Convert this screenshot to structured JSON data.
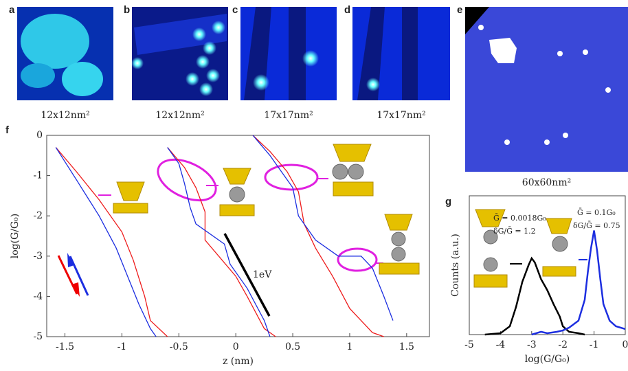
{
  "panels": [
    {
      "letter": "a",
      "caption": "12x12nm²"
    },
    {
      "letter": "b",
      "caption": "12x12nm²"
    },
    {
      "letter": "c",
      "caption": "17x17nm²"
    },
    {
      "letter": "d",
      "caption": "17x17nm²"
    },
    {
      "letter": "e",
      "caption": "60x60nm²"
    }
  ],
  "chart_data": [
    {
      "type": "line",
      "label": "f",
      "xlabel": "z (nm)",
      "ylabel": "log(G/G₀)",
      "annotation": "1eV",
      "xlim": [
        -1.66,
        1.7
      ],
      "ylim": [
        -5,
        0
      ],
      "xticks": [
        -1.5,
        -1,
        -0.5,
        0,
        0.5,
        1,
        1.5
      ],
      "yticks": [
        0,
        -1,
        -2,
        -3,
        -4,
        -5
      ],
      "series": [
        {
          "color": "#ee1c1c",
          "x": [
            -1.58,
            -1.4,
            -1.2,
            -1.0,
            -0.9,
            -0.8,
            -0.75,
            -0.6
          ],
          "values": [
            -0.3,
            -0.9,
            -1.6,
            -2.4,
            -3.1,
            -4.0,
            -4.6,
            -5
          ]
        },
        {
          "color": "#1c2ee0",
          "x": [
            -1.58,
            -1.4,
            -1.2,
            -1.05,
            -0.95,
            -0.85,
            -0.75,
            -0.7
          ],
          "values": [
            -0.3,
            -1.1,
            -2.0,
            -2.8,
            -3.5,
            -4.2,
            -4.8,
            -5
          ]
        },
        {
          "color": "#ee1c1c",
          "x": [
            -0.6,
            -0.45,
            -0.35,
            -0.27,
            -0.27,
            0,
            0.1,
            0.25,
            0.35
          ],
          "values": [
            -0.3,
            -0.8,
            -1.3,
            -1.9,
            -2.6,
            -3.5,
            -4.0,
            -4.8,
            -5
          ]
        },
        {
          "color": "#1c2ee0",
          "x": [
            -0.6,
            -0.5,
            -0.45,
            -0.4,
            -0.35,
            -0.1,
            -0.05,
            0.1,
            0.25,
            0.3
          ],
          "values": [
            -0.3,
            -0.7,
            -1.2,
            -1.8,
            -2.2,
            -2.7,
            -3.2,
            -3.8,
            -4.6,
            -5
          ]
        },
        {
          "color": "#ee1c1c",
          "x": [
            0.15,
            0.3,
            0.45,
            0.55,
            0.6,
            0.7,
            0.85,
            1.0,
            1.2,
            1.3
          ],
          "values": [
            0,
            -0.4,
            -0.9,
            -1.4,
            -2.2,
            -2.8,
            -3.5,
            -4.3,
            -4.9,
            -5
          ]
        },
        {
          "color": "#1c2ee0",
          "x": [
            0.15,
            0.3,
            0.5,
            0.55,
            0.7,
            0.9,
            1.1,
            1.2,
            1.3,
            1.38
          ],
          "values": [
            0,
            -0.5,
            -1.3,
            -2.0,
            -2.6,
            -3.0,
            -3.0,
            -3.3,
            -4.0,
            -4.6
          ]
        }
      ]
    },
    {
      "type": "line",
      "label": "g",
      "xlabel": "log(G/G₀)",
      "ylabel": "Counts (a.u.)",
      "annotations": [
        "Ḡ = 0.0018G₀",
        "δG/Ḡ = 1.2",
        "Ḡ = 0.1G₀",
        "δG/Ḡ = 0.75"
      ],
      "xlim": [
        -5,
        0
      ],
      "ylim": [
        0,
        1
      ],
      "xticks": [
        -5,
        -4,
        -3,
        -2,
        -1,
        0
      ],
      "series": [
        {
          "color": "#000000",
          "x": [
            -4.5,
            -4,
            -3.7,
            -3.5,
            -3.3,
            -3.1,
            -3.0,
            -2.9,
            -2.7,
            -2.5,
            -2.3,
            -2.1,
            -2.0,
            -1.8,
            -1.5,
            -1.3
          ],
          "values": [
            0,
            0.01,
            0.06,
            0.2,
            0.38,
            0.5,
            0.55,
            0.52,
            0.4,
            0.32,
            0.22,
            0.13,
            0.06,
            0.02,
            0.01,
            0
          ]
        },
        {
          "color": "#1c2ee0",
          "x": [
            -3,
            -2.7,
            -2.5,
            -2.2,
            -2.0,
            -1.8,
            -1.5,
            -1.3,
            -1.2,
            -1.1,
            -1.0,
            -0.9,
            -0.8,
            -0.7,
            -0.5,
            -0.3,
            0
          ],
          "values": [
            0,
            0.02,
            0.01,
            0.02,
            0.03,
            0.05,
            0.1,
            0.25,
            0.45,
            0.62,
            0.75,
            0.6,
            0.4,
            0.22,
            0.1,
            0.06,
            0.04
          ]
        }
      ]
    }
  ]
}
